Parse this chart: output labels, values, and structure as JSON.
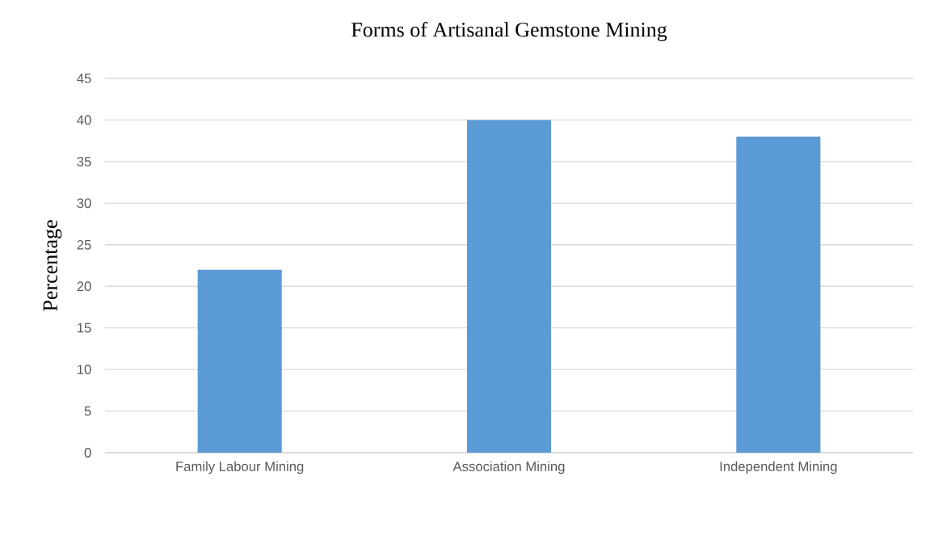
{
  "chart_data": {
    "type": "bar",
    "title": "Forms of Artisanal Gemstone Mining",
    "ylabel": "Percentage",
    "categories": [
      "Family Labour Mining",
      "Association Mining",
      "Independent Mining"
    ],
    "values": [
      22,
      40,
      38
    ],
    "color": "#5b9bd5",
    "ylim": [
      0,
      45
    ],
    "yticks": [
      0,
      5,
      10,
      15,
      20,
      25,
      30,
      35,
      40,
      45
    ],
    "grid": "y"
  }
}
